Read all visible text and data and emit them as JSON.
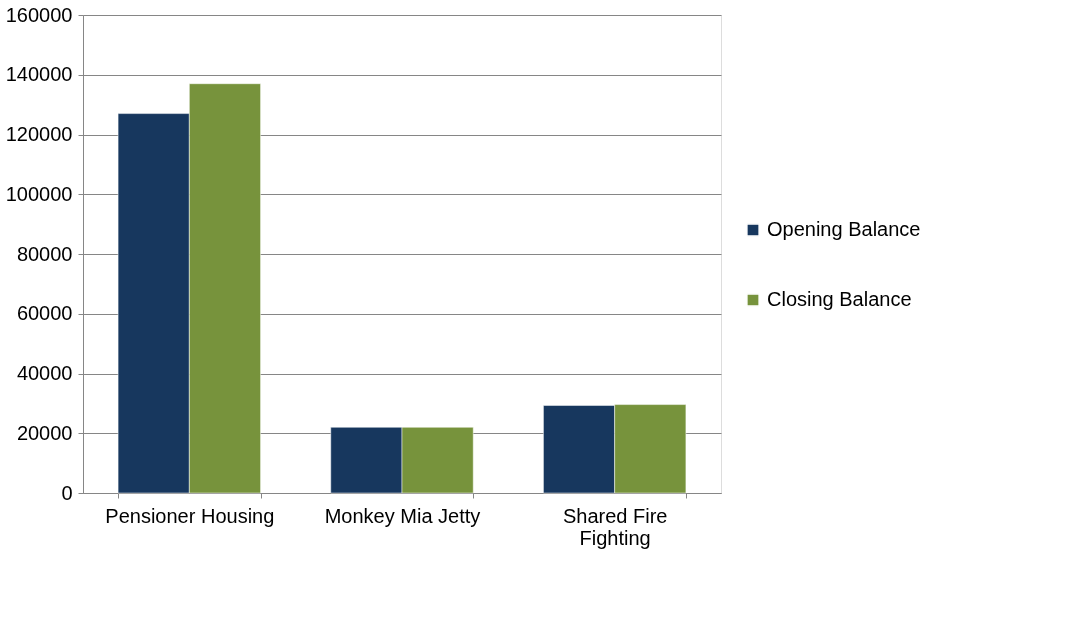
{
  "chart_data": {
    "type": "bar",
    "categories": [
      "Pensioner Housing",
      "Monkey Mia Jetty",
      "Shared Fire\nFighting"
    ],
    "series": [
      {
        "name": "Opening Balance",
        "color": "#17375e",
        "values": [
          127000,
          22000,
          29300
        ]
      },
      {
        "name": "Closing Balance",
        "color": "#77933c",
        "values": [
          137000,
          22000,
          29600
        ]
      }
    ],
    "ylim": [
      0,
      160000
    ],
    "yticks": [
      0,
      20000,
      40000,
      60000,
      80000,
      100000,
      120000,
      140000,
      160000
    ],
    "grid": "y",
    "legend": "right"
  }
}
